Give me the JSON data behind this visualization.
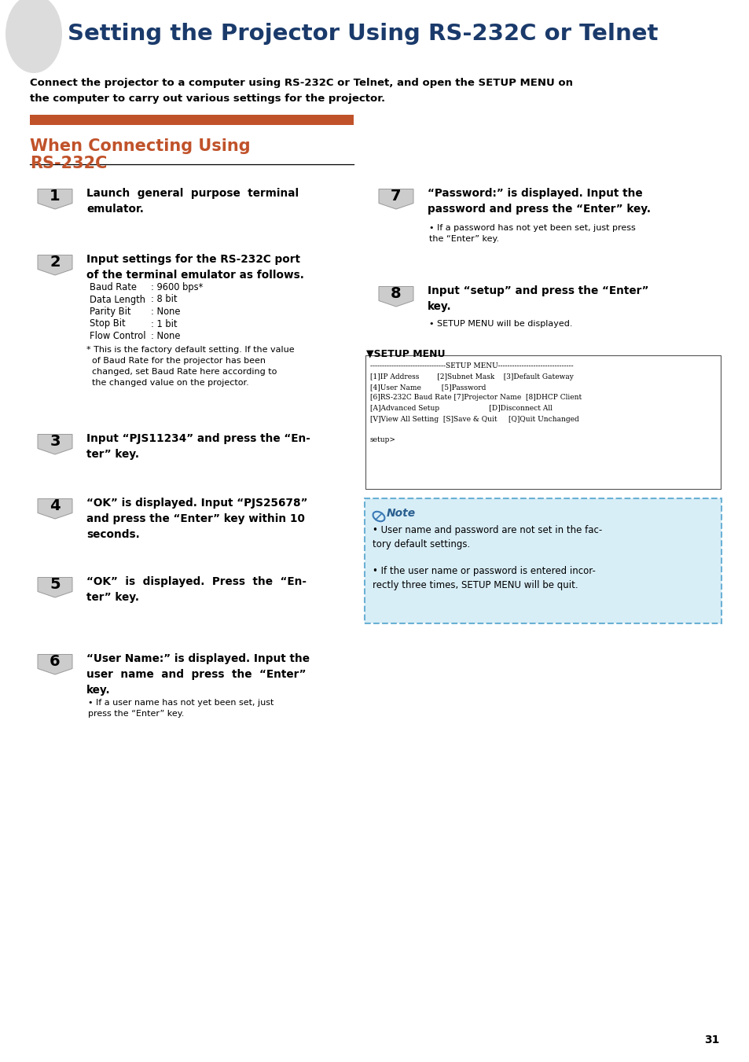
{
  "title": "Setting the Projector Using RS-232C or Telnet",
  "title_color": "#1a3a6b",
  "subtitle_line1": "Connect the projector to a computer using RS-232C or Telnet, and open the SETUP MENU on",
  "subtitle_line2": "the computer to carry out various settings for the projector.",
  "section_title_line1": "When Connecting Using",
  "section_title_line2": "RS-232C",
  "section_color": "#c0522a",
  "bar_color": "#c0522a",
  "steps_left": [
    {
      "num": "1",
      "bold_text": "Launch  general  purpose  terminal\nemulator.",
      "has_bullet": false
    },
    {
      "num": "2",
      "bold_text": "Input settings for the RS-232C port\nof the terminal emulator as follows.",
      "has_table": true,
      "table": [
        [
          "Baud Rate",
          ": 9600 bps*"
        ],
        [
          "Data Length",
          ": 8 bit"
        ],
        [
          "Parity Bit",
          ": None"
        ],
        [
          "Stop Bit",
          ": 1 bit"
        ],
        [
          "Flow Control",
          ": None"
        ]
      ],
      "footnote": "* This is the factory default setting. If the value\n  of Baud Rate for the projector has been\n  changed, set Baud Rate here according to\n  the changed value on the projector.",
      "has_bullet": false
    },
    {
      "num": "3",
      "bold_text": "Input “PJS11234” and press the “En-\nter” key.",
      "has_bullet": false
    },
    {
      "num": "4",
      "bold_text": "“OK” is displayed. Input “PJS25678”\nand press the “Enter” key within 10\nseconds.",
      "has_bullet": false
    },
    {
      "num": "5",
      "bold_text": "“OK”  is  displayed.  Press  the  “En-\nter” key.",
      "has_bullet": false
    },
    {
      "num": "6",
      "bold_text": "“User Name:” is displayed. Input the\nuser  name  and  press  the  “Enter”\nkey.",
      "has_bullet": true,
      "bullet_text": "If a user name has not yet been set, just\npress the “Enter” key."
    }
  ],
  "steps_right": [
    {
      "num": "7",
      "bold_text": "“Password:” is displayed. Input the\npassword and press the “Enter” key.",
      "has_bullet": true,
      "bullet_text": "If a password has not yet been set, just press\nthe “Enter” key."
    },
    {
      "num": "8",
      "bold_text": "Input “setup” and press the “Enter”\nkey.",
      "has_bullet": true,
      "bullet_text": "SETUP MENU will be displayed."
    }
  ],
  "setup_menu_title": "▼SETUP MENU",
  "setup_menu_lines": [
    "--------------------------------SETUP MENU--------------------------------",
    "[1]IP Address        [2]Subnet Mask    [3]Default Gateway",
    "[4]User Name         [5]Password",
    "[6]RS-232C Baud Rate [7]Projector Name  [8]DHCP Client",
    "[A]Advanced Setup                      [D]Disconnect All",
    "[V]View All Setting  [S]Save & Quit     [Q]Quit Unchanged",
    "",
    "setup>"
  ],
  "note_title": "Note",
  "note_bg": "#d8eef7",
  "note_border_color": "#6ab0d4",
  "note_bullets": [
    "User name and password are not set in the fac-\ntory default settings.",
    "If the user name or password is entered incor-\nrectly three times, SETUP MENU will be quit."
  ],
  "page_number": "31",
  "bg_color": "#ffffff",
  "badge_fill": "#cccccc",
  "badge_edge": "#999999"
}
